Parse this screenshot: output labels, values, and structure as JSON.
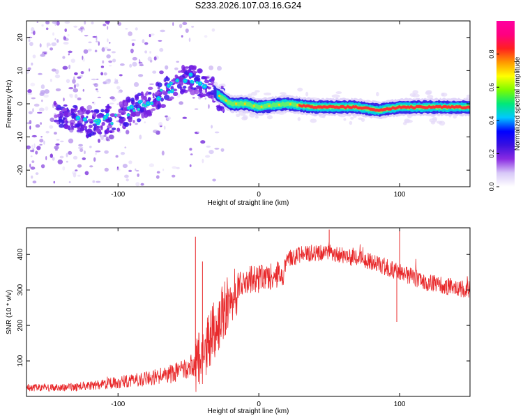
{
  "title": "S233.2026.107.03.16.G24",
  "chart_data": [
    {
      "type": "heatmap",
      "title": "S233.2026.107.03.16.G24",
      "xlabel": "Height of straight line (km)",
      "ylabel": "Frequency (Hz)",
      "xlim": [
        -165,
        150
      ],
      "ylim": [
        -25,
        25
      ],
      "x_ticks": [
        -100,
        0,
        100
      ],
      "y_ticks": [
        -20,
        -10,
        0,
        10,
        20
      ],
      "colorbar": {
        "label": "Normalized spectral amplitude",
        "range": [
          0,
          1
        ],
        "ticks": [
          0.0,
          0.2,
          0.4,
          0.6,
          0.8
        ],
        "colors": [
          "#ffffff",
          "#d8c8f8",
          "#8a2be2",
          "#3a10e0",
          "#0000ff",
          "#00c8ff",
          "#00e87a",
          "#7cfc00",
          "#ffff00",
          "#ff9900",
          "#ff2020",
          "#ff0080",
          "#ff00a0"
        ]
      },
      "ridge": [
        [
          -165,
          0
        ],
        [
          -140,
          -3
        ],
        [
          -120,
          -6
        ],
        [
          -100,
          -4
        ],
        [
          -80,
          0
        ],
        [
          -65,
          4
        ],
        [
          -50,
          8
        ],
        [
          -40,
          6
        ],
        [
          -30,
          3
        ],
        [
          -20,
          0
        ],
        [
          -10,
          0
        ],
        [
          0,
          -1
        ],
        [
          20,
          0
        ],
        [
          40,
          -1
        ],
        [
          70,
          -1
        ],
        [
          85,
          -2
        ],
        [
          100,
          -1
        ],
        [
          150,
          -1
        ]
      ]
    },
    {
      "type": "line",
      "xlabel": "Height of straight line (km)",
      "ylabel": "SNR (10 * v/v)",
      "xlim": [
        -165,
        150
      ],
      "ylim": [
        0,
        475
      ],
      "x_ticks": [
        -100,
        0,
        100
      ],
      "y_ticks": [
        100,
        200,
        300,
        400
      ],
      "color": "#e8282a",
      "series": [
        {
          "name": "SNR",
          "x": [
            -165,
            -140,
            -120,
            -100,
            -80,
            -60,
            -50,
            -40,
            -35,
            -30,
            -25,
            -20,
            -15,
            -10,
            -5,
            0,
            10,
            18,
            20,
            30,
            40,
            50,
            60,
            80,
            100,
            120,
            150
          ],
          "values": [
            25,
            25,
            30,
            40,
            50,
            65,
            80,
            110,
            160,
            200,
            240,
            290,
            310,
            325,
            330,
            330,
            340,
            350,
            385,
            400,
            405,
            405,
            395,
            380,
            350,
            320,
            300
          ]
        }
      ],
      "spikes": [
        [
          -45,
          450
        ],
        [
          -40,
          380
        ],
        [
          100,
          470
        ],
        [
          98,
          210
        ],
        [
          50,
          470
        ]
      ]
    }
  ]
}
